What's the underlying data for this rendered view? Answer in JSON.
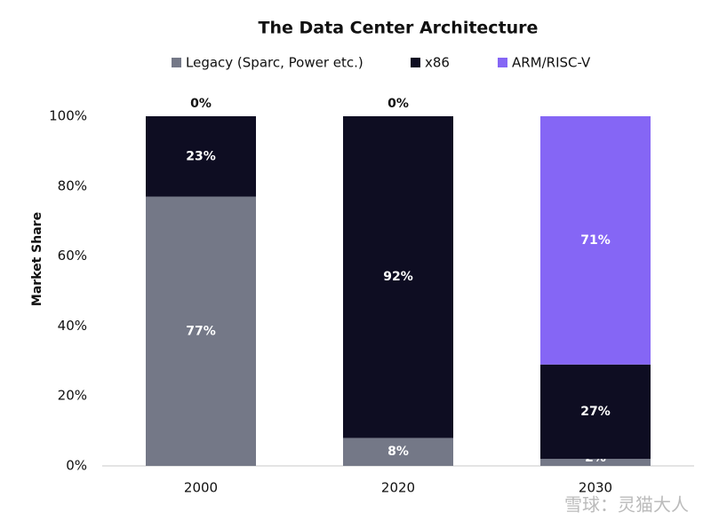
{
  "chart_data": {
    "type": "stacked_bar",
    "title": "The Data Center Architecture",
    "y_label": "Market Share",
    "categories": [
      "2000",
      "2020",
      "2030"
    ],
    "series": [
      {
        "name": "Legacy (Sparc, Power etc.)",
        "color": "#747887",
        "values": [
          77,
          8,
          2
        ],
        "value_labels": [
          "77%",
          "8%",
          "2%"
        ]
      },
      {
        "name": "x86",
        "color": "#0e0d22",
        "values": [
          23,
          92,
          27
        ],
        "value_labels": [
          "23%",
          "92%",
          "27%"
        ]
      },
      {
        "name": "ARM/RISC-V",
        "color": "#8566f5",
        "values": [
          0,
          0,
          71
        ],
        "value_labels": [
          "0%",
          "0%",
          "71%"
        ]
      }
    ],
    "ylim": [
      0,
      100
    ],
    "yticks": [
      {
        "value": 0,
        "label": "0%"
      },
      {
        "value": 20,
        "label": "20%"
      },
      {
        "value": 40,
        "label": "40%"
      },
      {
        "value": 60,
        "label": "60%"
      },
      {
        "value": 80,
        "label": "80%"
      },
      {
        "value": 100,
        "label": "100%"
      }
    ],
    "grid": false,
    "legend": "top",
    "watermark": "雪球：灵猫大人"
  }
}
